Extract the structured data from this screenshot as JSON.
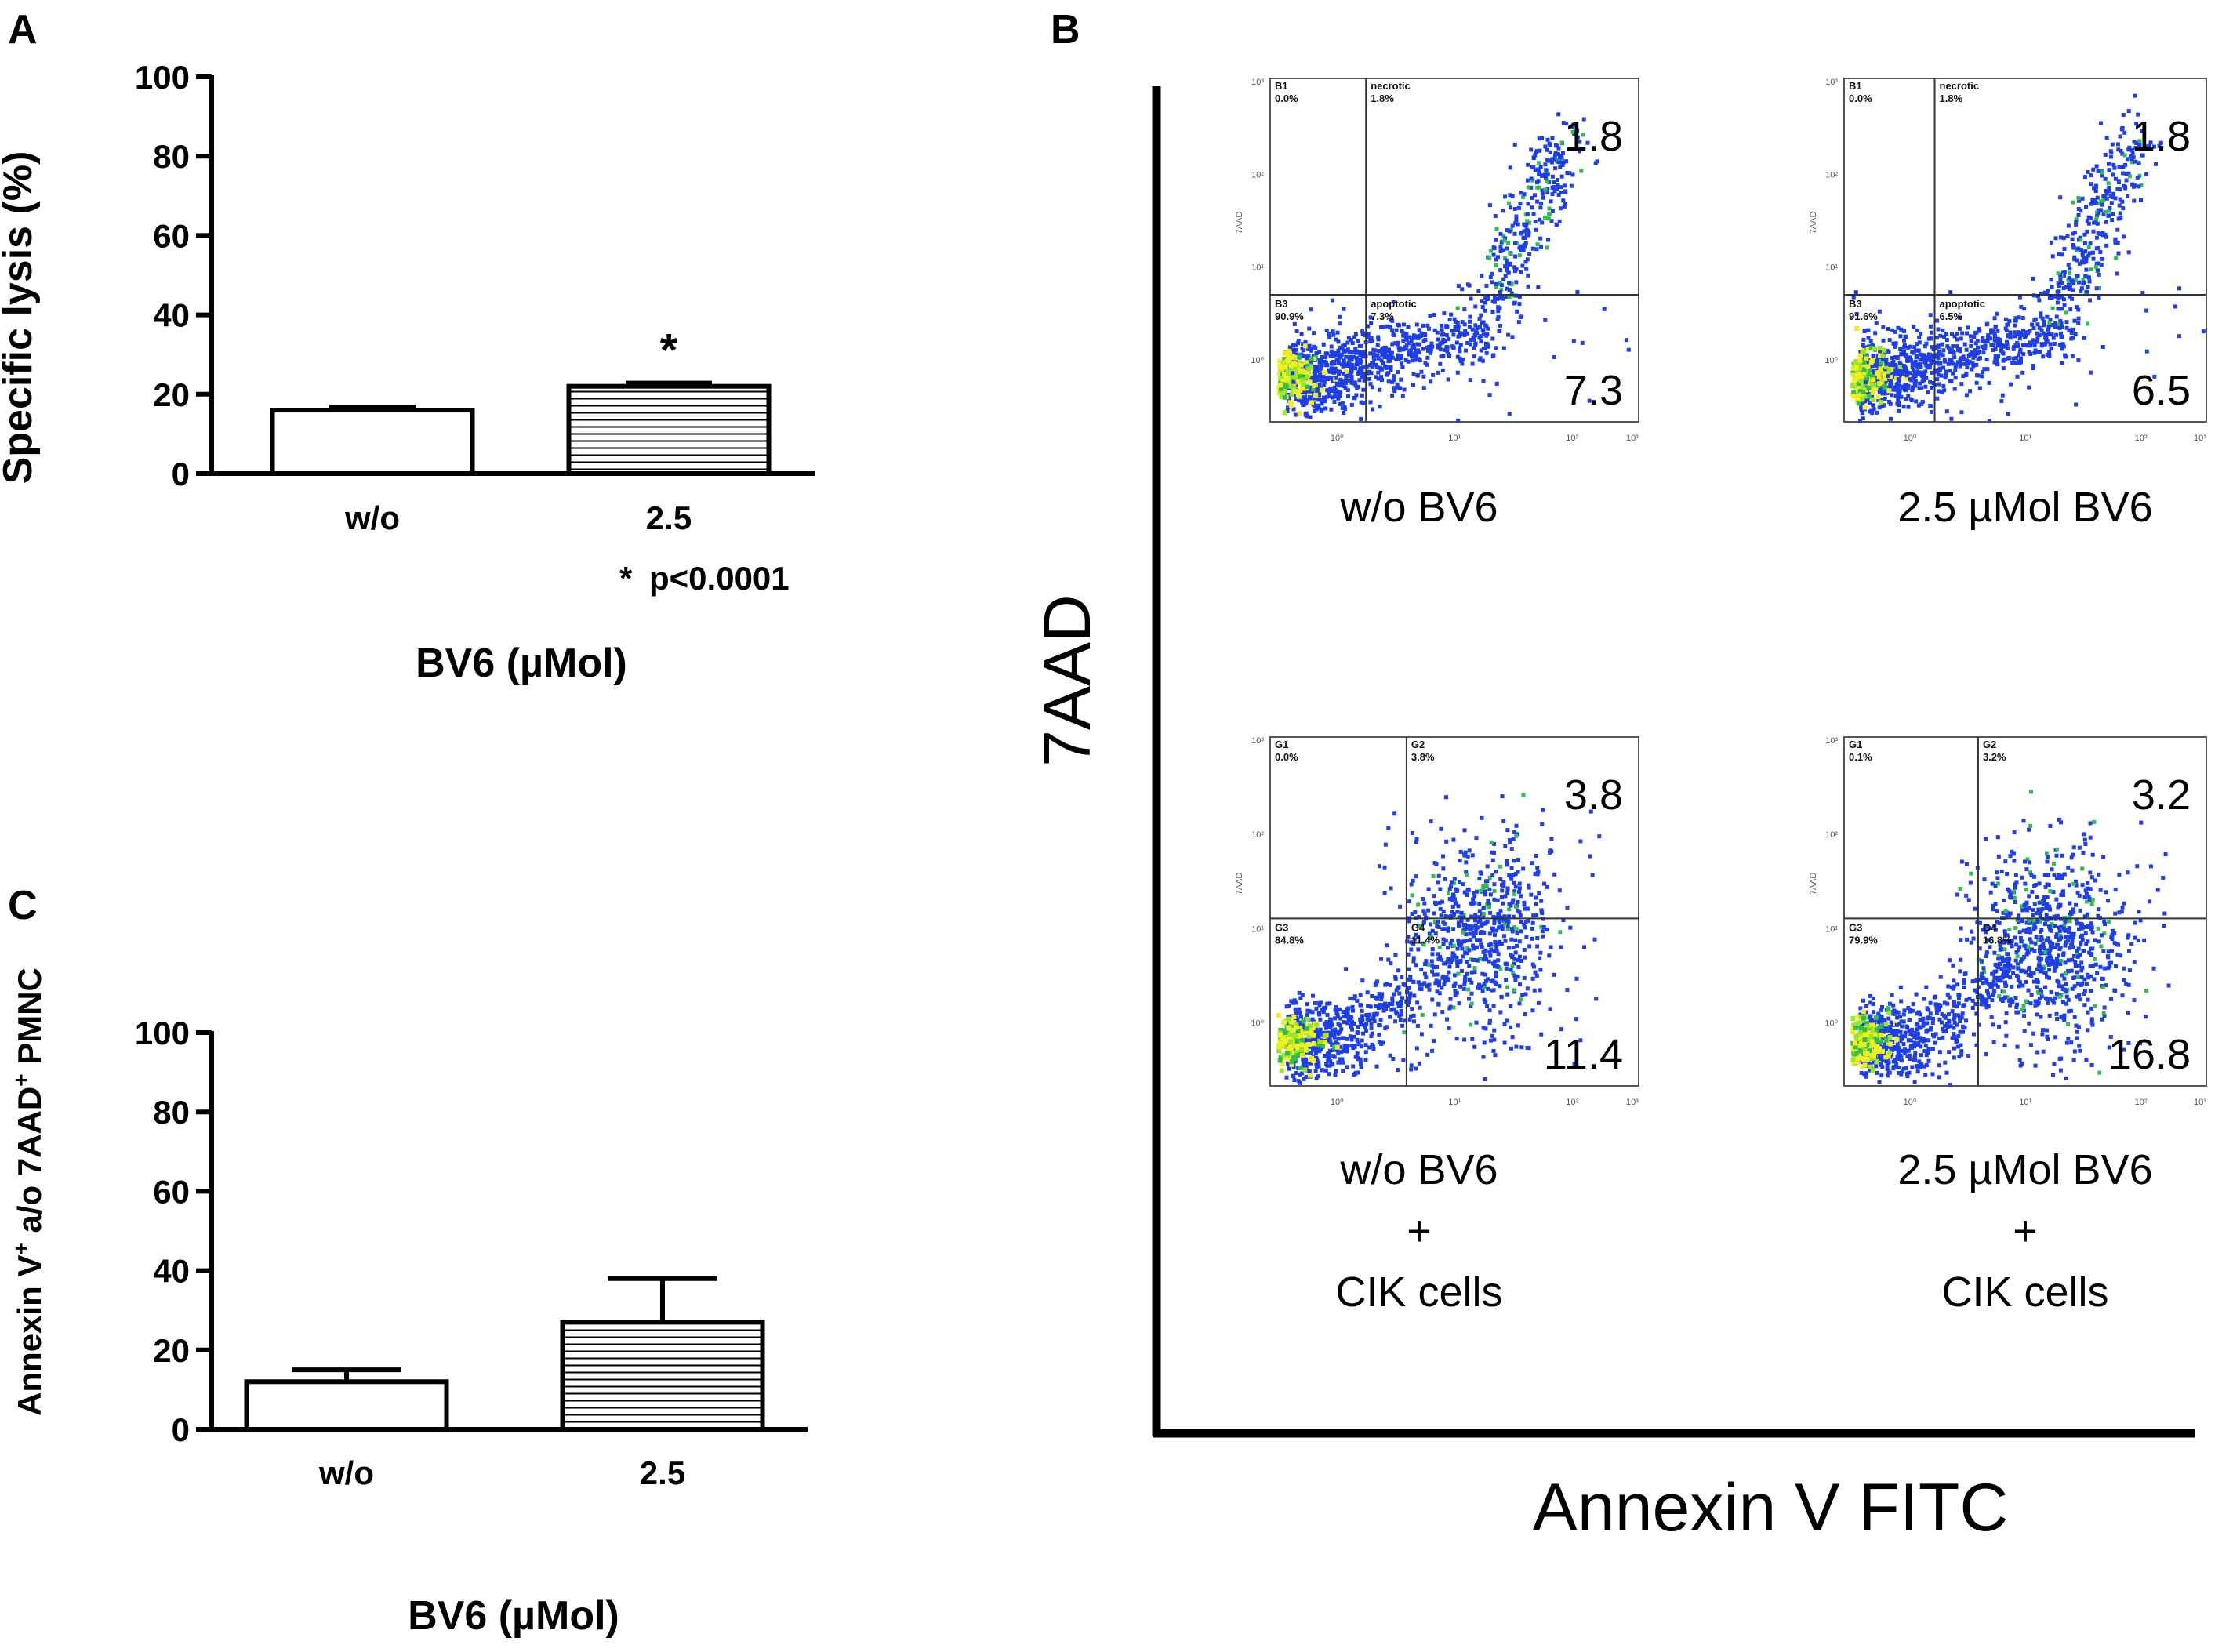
{
  "chart_data": [
    {
      "panel": "A",
      "type": "bar",
      "categories": [
        "w/o",
        "2.5"
      ],
      "values": [
        16,
        22
      ],
      "errors": [
        0.8,
        0.8
      ],
      "significance": [
        "",
        "*"
      ],
      "note_star": "*",
      "note_text": "p<0.0001",
      "xlabel": "BV6 (µMol)",
      "ylabel": "Specific lysis (%)",
      "ylim": [
        0,
        100
      ],
      "yticks": [
        "0",
        "20",
        "40",
        "60",
        "80",
        "100"
      ],
      "fills": [
        "open",
        "horizontal-hatch"
      ]
    },
    {
      "panel": "C",
      "type": "bar",
      "categories": [
        "w/o",
        "2.5"
      ],
      "values": [
        12,
        27
      ],
      "errors": [
        3,
        11
      ],
      "xlabel": "BV6 (µMol)",
      "ylabel_main": "Annexin V",
      "ylabel_sup1": "+",
      "ylabel_mid": " a/o 7AAD",
      "ylabel_sup2": "+",
      "ylabel_end": " PMNC",
      "ylim": [
        0,
        100
      ],
      "yticks": [
        "0",
        "20",
        "40",
        "60",
        "80",
        "100"
      ],
      "fills": [
        "open",
        "horizontal-hatch"
      ]
    },
    {
      "panel": "B",
      "type": "scatter",
      "xlabel": "Annexin V FITC",
      "ylabel": "7AAD",
      "plots": [
        {
          "caption_lines": [
            "w/o BV6"
          ],
          "q_ul_name": "B1",
          "q_ul_pct": "0.0%",
          "q_ur_name": "necrotic",
          "q_ur_pct": "1.8%",
          "q_ll_name": "B3",
          "q_ll_pct": "90.9%",
          "q_lr_name": "apoptotic",
          "q_lr_pct": "7.3%",
          "upper_value": "1.8",
          "lower_value": "7.3",
          "pattern": "control"
        },
        {
          "caption_lines": [
            "2.5 µMol BV6"
          ],
          "q_ul_name": "B1",
          "q_ul_pct": "0.0%",
          "q_ur_name": "necrotic",
          "q_ur_pct": "1.8%",
          "q_ll_name": "B3",
          "q_ll_pct": "91.6%",
          "q_lr_name": "apoptotic",
          "q_lr_pct": "6.5%",
          "upper_value": "1.8",
          "lower_value": "6.5",
          "pattern": "control"
        },
        {
          "caption_lines": [
            "w/o BV6",
            "+",
            "CIK cells"
          ],
          "q_ul_name": "G1",
          "q_ul_pct": "0.0%",
          "q_ur_name": "G2",
          "q_ur_pct": "3.8%",
          "q_ll_name": "G3",
          "q_ll_pct": "84.8%",
          "q_lr_name": "G4",
          "q_lr_pct": "11.4%",
          "upper_value": "3.8",
          "lower_value": "11.4",
          "pattern": "cik"
        },
        {
          "caption_lines": [
            "2.5 µMol BV6",
            "+",
            "CIK cells"
          ],
          "q_ul_name": "G1",
          "q_ul_pct": "0.1%",
          "q_ur_name": "G2",
          "q_ur_pct": "3.2%",
          "q_ll_name": "G3",
          "q_ll_pct": "79.9%",
          "q_lr_name": "G4",
          "q_lr_pct": "16.8%",
          "upper_value": "3.2",
          "lower_value": "16.8",
          "pattern": "cik"
        }
      ],
      "axis_ticks": [
        "10⁰",
        "10¹",
        "10²",
        "10³"
      ],
      "flow_ylabel": "7AAD"
    }
  ],
  "panels": {
    "a": "A",
    "b": "B",
    "c": "C"
  }
}
